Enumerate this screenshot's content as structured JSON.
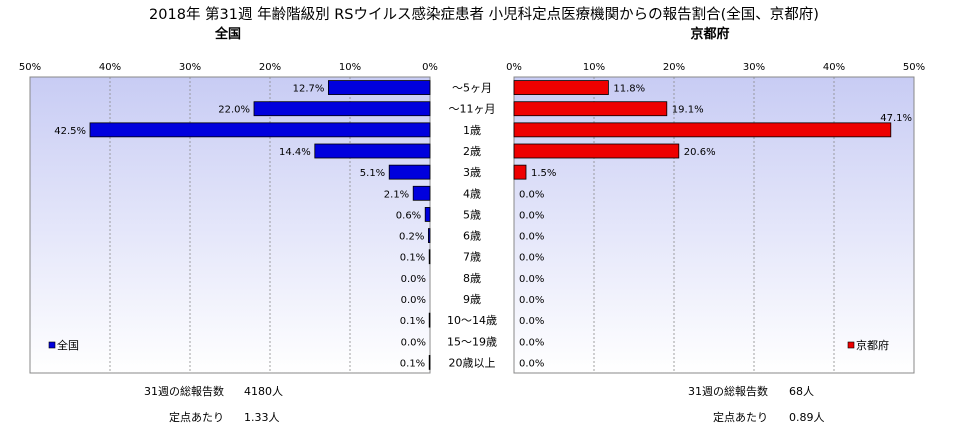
{
  "title": "2018年 第31週 年齢階級別 RSウイルス感染症患者 小児科定点医療機関からの報告割合(全国、京都府)",
  "categories": [
    "～5ヶ月",
    "～11ヶ月",
    "1歳",
    "2歳",
    "3歳",
    "4歳",
    "5歳",
    "6歳",
    "7歳",
    "8歳",
    "9歳",
    "10～14歳",
    "15～19歳",
    "20歳以上"
  ],
  "chart_data": [
    {
      "type": "bar",
      "orientation": "horizontal",
      "direction": "reversed",
      "title": "全国",
      "categories": [
        "～5ヶ月",
        "～11ヶ月",
        "1歳",
        "2歳",
        "3歳",
        "4歳",
        "5歳",
        "6歳",
        "7歳",
        "8歳",
        "9歳",
        "10～14歳",
        "15～19歳",
        "20歳以上"
      ],
      "values": [
        12.7,
        22.0,
        42.5,
        14.4,
        5.1,
        2.1,
        0.6,
        0.2,
        0.1,
        0.0,
        0.0,
        0.1,
        0.0,
        0.1
      ],
      "value_labels": [
        "12.7%",
        "22.0%",
        "42.5%",
        "14.4%",
        "5.1%",
        "2.1%",
        "0.6%",
        "0.2%",
        "0.1%",
        "0.0%",
        "0.0%",
        "0.1%",
        "0.0%",
        "0.1%"
      ],
      "xlim": [
        0,
        50
      ],
      "ticks": [
        50,
        40,
        30,
        20,
        10,
        0
      ],
      "tick_labels": [
        "50%",
        "40%",
        "30%",
        "20%",
        "10%",
        "0%"
      ],
      "legend": "全国",
      "legend_position": "bottom-left",
      "color": "#0000dd",
      "grid": true
    },
    {
      "type": "bar",
      "orientation": "horizontal",
      "title": "京都府",
      "categories": [
        "～5ヶ月",
        "～11ヶ月",
        "1歳",
        "2歳",
        "3歳",
        "4歳",
        "5歳",
        "6歳",
        "7歳",
        "8歳",
        "9歳",
        "10～14歳",
        "15～19歳",
        "20歳以上"
      ],
      "values": [
        11.8,
        19.1,
        47.1,
        20.6,
        1.5,
        0.0,
        0.0,
        0.0,
        0.0,
        0.0,
        0.0,
        0.0,
        0.0,
        0.0
      ],
      "value_labels": [
        "11.8%",
        "19.1%",
        "47.1%",
        "20.6%",
        "1.5%",
        "0.0%",
        "0.0%",
        "0.0%",
        "0.0%",
        "0.0%",
        "0.0%",
        "0.0%",
        "0.0%",
        "0.0%"
      ],
      "xlim": [
        0,
        50
      ],
      "ticks": [
        0,
        10,
        20,
        30,
        40,
        50
      ],
      "tick_labels": [
        "0%",
        "10%",
        "20%",
        "30%",
        "40%",
        "50%"
      ],
      "legend": "京都府",
      "legend_position": "bottom-right",
      "color": "#ee0000",
      "grid": true
    }
  ],
  "footer": {
    "national": {
      "total_label": "31週の総報告数",
      "total_value": "4180人",
      "per_label": "定点あたり",
      "per_value": "1.33人"
    },
    "kyoto": {
      "total_label": "31週の総報告数",
      "total_value": "68人",
      "per_label": "定点あたり",
      "per_value": "0.89人"
    }
  },
  "colors": {
    "national_bar": "#0000dd",
    "kyoto_bar": "#ee0000",
    "plot_bg_top": "#c8ccf4",
    "plot_bg_bottom": "#ffffff"
  }
}
